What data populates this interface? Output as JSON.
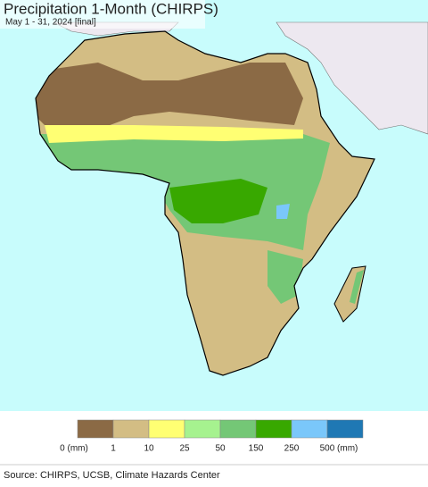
{
  "title": "Precipitation 1-Month (CHIRPS)",
  "subtitle": "May 1 - 31, 2024 [final]",
  "legend": {
    "colors": [
      "#8b6a45",
      "#d3bd84",
      "#ffff73",
      "#a6f28f",
      "#74c776",
      "#38a800",
      "#7ac7fa",
      "#1f78b4"
    ],
    "labels": [
      "0 (mm)",
      "1",
      "10",
      "25",
      "50",
      "150",
      "250",
      "500 (mm)"
    ]
  },
  "source": "Source: CHIRPS, UCSB, Climate Hazards Center"
}
